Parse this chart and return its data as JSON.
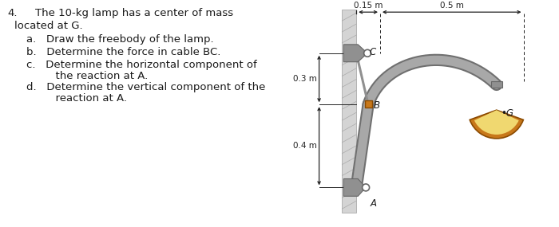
{
  "title_num": "4.",
  "title_text": "The 10-kg lamp has a center of mass",
  "title_text2": "located at G.",
  "item_a": "a.   Draw the freebody of the lamp.",
  "item_b": "b.   Determine the force in cable BC.",
  "item_c1": "c.   Determine the horizontal component of",
  "item_c2": "      the reaction at A.",
  "item_d1": "d.   Determine the vertical component of the",
  "item_d2": "      reaction at A.",
  "dim_015": "0.15 m",
  "dim_05": "0.5 m",
  "dim_03": "0.3 m",
  "dim_04": "0.4 m",
  "label_C": "C",
  "label_B": "B",
  "label_A": "A",
  "label_G": "•G",
  "bg_color": "#ffffff",
  "wall_fill": "#d4d4d4",
  "wall_edge": "#aaaaaa",
  "arm_color": "#a8a8a8",
  "arm_dark": "#707070",
  "cable_color": "#909090",
  "bracket_color": "#909090",
  "bracket_dark": "#666666",
  "pin_color": "#c8781a",
  "pin_dark": "#8a4a00",
  "lamp_outer": "#c8781a",
  "lamp_inner": "#f0d870",
  "lamp_top": "#909090",
  "text_color": "#1a1a1a",
  "dim_color": "#222222"
}
